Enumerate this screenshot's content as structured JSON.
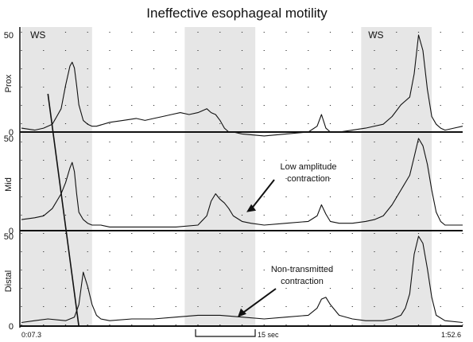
{
  "chart_data": {
    "type": "line",
    "title": "Ineffective esophageal motility",
    "x_start_label": "0:07.3",
    "x_end_label": "1:52.6",
    "scale_bar_label": "15 sec",
    "ws_labels": [
      "WS",
      "WS"
    ],
    "swallow_windows": [
      [
        0,
        16
      ],
      [
        37,
        53
      ],
      [
        77,
        93
      ]
    ],
    "x_range": [
      0,
      100
    ],
    "grid": "dotted",
    "annotations": [
      {
        "text": [
          "Low amplitude",
          "contraction"
        ],
        "channel": "Mid",
        "x": 51,
        "y": 10
      },
      {
        "text": [
          "Non-transmitted",
          "contraction"
        ],
        "channel": "Distal",
        "x": 49,
        "y": 5
      }
    ],
    "channels": [
      {
        "name": "Prox",
        "ylim": [
          0,
          50
        ],
        "yticks": [
          0,
          50
        ],
        "x": [
          0,
          3,
          5,
          7,
          8,
          9,
          10,
          11,
          11.5,
          12,
          12.5,
          13,
          14,
          15,
          16,
          17,
          20,
          23,
          26,
          28,
          30,
          32,
          34,
          36,
          38,
          40,
          41,
          42,
          43,
          44,
          45,
          46,
          47,
          48,
          50,
          55,
          60,
          65,
          67,
          68,
          69,
          70,
          72,
          75,
          78,
          82,
          84,
          86,
          88,
          89,
          90,
          91,
          92,
          93,
          94,
          95,
          96,
          98,
          100
        ],
        "values": [
          2,
          1,
          2,
          4,
          8,
          12,
          24,
          34,
          36,
          33,
          24,
          14,
          6,
          4,
          3,
          3,
          5,
          6,
          7,
          6,
          7,
          8,
          9,
          10,
          9,
          10,
          11,
          12,
          10,
          9,
          6,
          2,
          0,
          0,
          -1,
          -2,
          -1,
          0,
          3,
          9,
          2,
          0,
          0,
          1,
          2,
          4,
          8,
          14,
          18,
          30,
          50,
          42,
          22,
          8,
          4,
          2,
          1,
          2,
          3
        ]
      },
      {
        "name": "Mid",
        "ylim": [
          0,
          50
        ],
        "yticks": [
          0,
          50
        ],
        "x": [
          0,
          3,
          5,
          7,
          8,
          9,
          10,
          11,
          11.5,
          12,
          12.5,
          13,
          14,
          15,
          16,
          18,
          20,
          25,
          30,
          35,
          40,
          42,
          43,
          44,
          45,
          46,
          47,
          48,
          50,
          52,
          55,
          60,
          65,
          67,
          68,
          69,
          70,
          72,
          75,
          78,
          80,
          82,
          84,
          86,
          88,
          89,
          90,
          91,
          92,
          93,
          94,
          95,
          96,
          98,
          100
        ],
        "values": [
          6,
          7,
          8,
          12,
          16,
          20,
          26,
          34,
          37,
          32,
          20,
          10,
          6,
          4,
          3,
          3,
          2,
          2,
          2,
          2,
          3,
          8,
          16,
          20,
          17,
          15,
          12,
          8,
          5,
          4,
          3,
          4,
          5,
          8,
          14,
          9,
          5,
          4,
          4,
          5,
          6,
          8,
          14,
          22,
          30,
          40,
          50,
          46,
          36,
          22,
          10,
          5,
          3,
          3,
          3
        ]
      },
      {
        "name": "Distal",
        "ylim": [
          0,
          50
        ],
        "yticks": [
          0,
          50
        ],
        "x": [
          0,
          3,
          6,
          10,
          12,
          13,
          14,
          15,
          16,
          17,
          18,
          20,
          25,
          30,
          35,
          40,
          45,
          50,
          55,
          60,
          65,
          67,
          68,
          69,
          70,
          72,
          75,
          78,
          82,
          84,
          86,
          87,
          88,
          89,
          90,
          91,
          92,
          93,
          94,
          96,
          100
        ],
        "values": [
          2,
          3,
          4,
          3,
          5,
          12,
          30,
          22,
          12,
          6,
          4,
          3,
          4,
          4,
          5,
          6,
          6,
          5,
          4,
          5,
          6,
          10,
          15,
          16,
          12,
          6,
          4,
          3,
          3,
          4,
          6,
          10,
          18,
          40,
          50,
          46,
          32,
          16,
          6,
          3,
          2
        ]
      }
    ]
  }
}
